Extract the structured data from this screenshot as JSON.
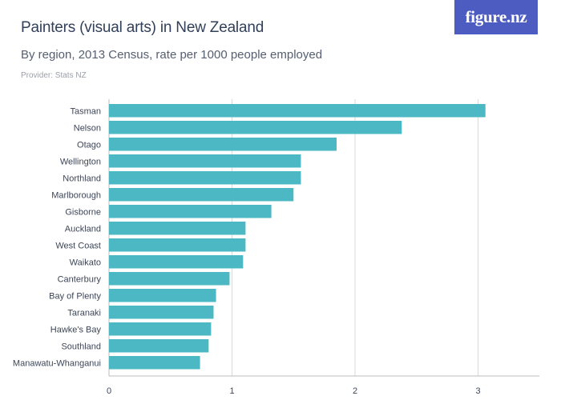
{
  "header": {
    "title": "Painters (visual arts) in New Zealand",
    "subtitle": "By region, 2013 Census, rate per 1000 people employed",
    "provider": "Provider: Stats NZ",
    "logo": "figure.nz"
  },
  "colors": {
    "bar": "#4bb8c4",
    "grid": "#d9d9d9",
    "logo_bg": "#4d5cc0"
  },
  "chart_data": {
    "type": "bar",
    "orientation": "horizontal",
    "title": "Painters (visual arts) in New Zealand",
    "subtitle": "By region, 2013 Census, rate per 1000 people employed",
    "categories": [
      "Tasman",
      "Nelson",
      "Otago",
      "Wellington",
      "Northland",
      "Marlborough",
      "Gisborne",
      "Auckland",
      "West Coast",
      "Waikato",
      "Canterbury",
      "Bay of Plenty",
      "Taranaki",
      "Hawke's Bay",
      "Southland",
      "Manawatu-Whanganui"
    ],
    "values": [
      3.06,
      2.38,
      1.85,
      1.56,
      1.56,
      1.5,
      1.32,
      1.11,
      1.11,
      1.09,
      0.98,
      0.87,
      0.85,
      0.83,
      0.81,
      0.74
    ],
    "xlim": [
      0,
      3.5
    ],
    "xticks": [
      0,
      1,
      2,
      3
    ],
    "grid": true,
    "legend": "none"
  }
}
